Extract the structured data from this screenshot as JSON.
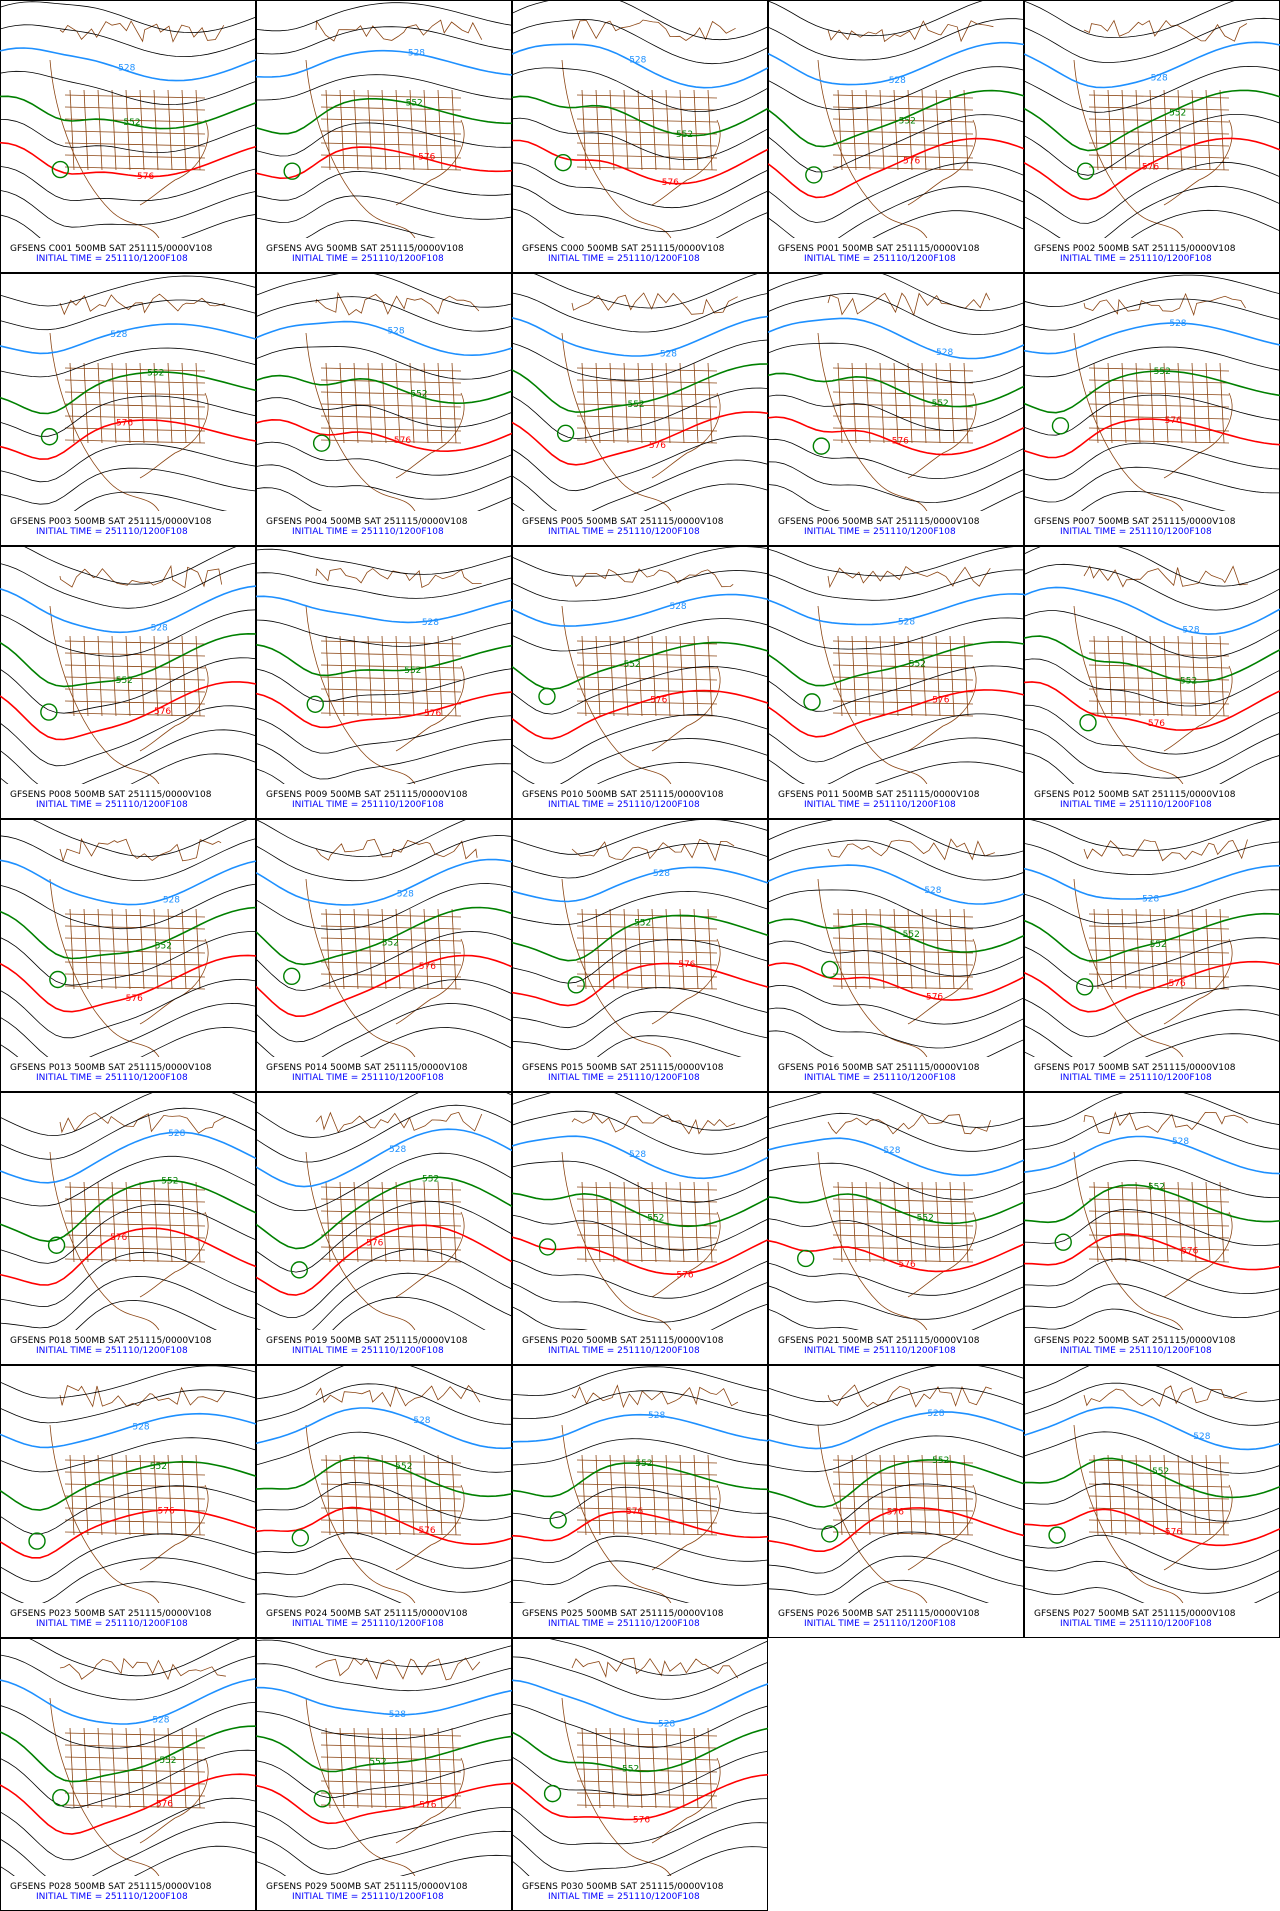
{
  "panels": [
    {
      "title": "GFSENS C001 500MB SAT 251115/0000V108",
      "subtitle": "INITIAL TIME = 251110/1200F108",
      "contour_labels": [
        "528",
        "552",
        "576"
      ]
    },
    {
      "title": "GFSENS AVG 500MB SAT 251115/0000V108",
      "subtitle": "INITIAL TIME = 251110/1200F108",
      "contour_labels": [
        "528",
        "552",
        "576"
      ]
    },
    {
      "title": "GFSENS C000 500MB SAT 251115/0000V108",
      "subtitle": "INITIAL TIME = 251110/1200F108",
      "contour_labels": [
        "528",
        "552",
        "576"
      ]
    },
    {
      "title": "GFSENS P001 500MB SAT 251115/0000V108",
      "subtitle": "INITIAL TIME = 251110/1200F108",
      "contour_labels": [
        "528",
        "552",
        "576"
      ]
    },
    {
      "title": "GFSENS P002 500MB SAT 251115/0000V108",
      "subtitle": "INITIAL TIME = 251110/1200F108",
      "contour_labels": [
        "528",
        "552",
        "576"
      ]
    },
    {
      "title": "GFSENS P003 500MB SAT 251115/0000V108",
      "subtitle": "INITIAL TIME = 251110/1200F108",
      "contour_labels": [
        "528",
        "552",
        "576"
      ]
    },
    {
      "title": "GFSENS P004 500MB SAT 251115/0000V108",
      "subtitle": "INITIAL TIME = 251110/1200F108",
      "contour_labels": [
        "528",
        "552",
        "576"
      ]
    },
    {
      "title": "GFSENS P005 500MB SAT 251115/0000V108",
      "subtitle": "INITIAL TIME = 251110/1200F108",
      "contour_labels": [
        "528",
        "552",
        "576"
      ]
    },
    {
      "title": "GFSENS P006 500MB SAT 251115/0000V108",
      "subtitle": "INITIAL TIME = 251110/1200F108",
      "contour_labels": [
        "528",
        "552",
        "576"
      ]
    },
    {
      "title": "GFSENS P007 500MB SAT 251115/0000V108",
      "subtitle": "INITIAL TIME = 251110/1200F108",
      "contour_labels": [
        "528",
        "552",
        "576"
      ]
    },
    {
      "title": "GFSENS P008 500MB SAT 251115/0000V108",
      "subtitle": "INITIAL TIME = 251110/1200F108",
      "contour_labels": [
        "528",
        "552",
        "576"
      ]
    },
    {
      "title": "GFSENS P009 500MB SAT 251115/0000V108",
      "subtitle": "INITIAL TIME = 251110/1200F108",
      "contour_labels": [
        "528",
        "552",
        "576"
      ]
    },
    {
      "title": "GFSENS P010 500MB SAT 251115/0000V108",
      "subtitle": "INITIAL TIME = 251110/1200F108",
      "contour_labels": [
        "528",
        "552",
        "576"
      ]
    },
    {
      "title": "GFSENS P011 500MB SAT 251115/0000V108",
      "subtitle": "INITIAL TIME = 251110/1200F108",
      "contour_labels": [
        "528",
        "552",
        "576"
      ]
    },
    {
      "title": "GFSENS P012 500MB SAT 251115/0000V108",
      "subtitle": "INITIAL TIME = 251110/1200F108",
      "contour_labels": [
        "528",
        "552",
        "576"
      ]
    },
    {
      "title": "GFSENS P013 500MB SAT 251115/0000V108",
      "subtitle": "INITIAL TIME = 251110/1200F108",
      "contour_labels": [
        "528",
        "552",
        "576"
      ]
    },
    {
      "title": "GFSENS P014 500MB SAT 251115/0000V108",
      "subtitle": "INITIAL TIME = 251110/1200F108",
      "contour_labels": [
        "528",
        "552",
        "576"
      ]
    },
    {
      "title": "GFSENS P015 500MB SAT 251115/0000V108",
      "subtitle": "INITIAL TIME = 251110/1200F108",
      "contour_labels": [
        "528",
        "552",
        "576"
      ]
    },
    {
      "title": "GFSENS P016 500MB SAT 251115/0000V108",
      "subtitle": "INITIAL TIME = 251110/1200F108",
      "contour_labels": [
        "528",
        "552",
        "576"
      ]
    },
    {
      "title": "GFSENS P017 500MB SAT 251115/0000V108",
      "subtitle": "INITIAL TIME = 251110/1200F108",
      "contour_labels": [
        "528",
        "552",
        "576"
      ]
    },
    {
      "title": "GFSENS P018 500MB SAT 251115/0000V108",
      "subtitle": "INITIAL TIME = 251110/1200F108",
      "contour_labels": [
        "528",
        "552",
        "576"
      ]
    },
    {
      "title": "GFSENS P019 500MB SAT 251115/0000V108",
      "subtitle": "INITIAL TIME = 251110/1200F108",
      "contour_labels": [
        "528",
        "552",
        "576"
      ]
    },
    {
      "title": "GFSENS P020 500MB SAT 251115/0000V108",
      "subtitle": "INITIAL TIME = 251110/1200F108",
      "contour_labels": [
        "528",
        "552",
        "576"
      ]
    },
    {
      "title": "GFSENS P021 500MB SAT 251115/0000V108",
      "subtitle": "INITIAL TIME = 251110/1200F108",
      "contour_labels": [
        "528",
        "552",
        "576"
      ]
    },
    {
      "title": "GFSENS P022 500MB SAT 251115/0000V108",
      "subtitle": "INITIAL TIME = 251110/1200F108",
      "contour_labels": [
        "528",
        "552",
        "576"
      ]
    },
    {
      "title": "GFSENS P023 500MB SAT 251115/0000V108",
      "subtitle": "INITIAL TIME = 251110/1200F108",
      "contour_labels": [
        "528",
        "552",
        "576"
      ]
    },
    {
      "title": "GFSENS P024 500MB SAT 251115/0000V108",
      "subtitle": "INITIAL TIME = 251110/1200F108",
      "contour_labels": [
        "528",
        "552",
        "576"
      ]
    },
    {
      "title": "GFSENS P025 500MB SAT 251115/0000V108",
      "subtitle": "INITIAL TIME = 251110/1200F108",
      "contour_labels": [
        "528",
        "552",
        "576"
      ]
    },
    {
      "title": "GFSENS P026 500MB SAT 251115/0000V108",
      "subtitle": "INITIAL TIME = 251110/1200F108",
      "contour_labels": [
        "528",
        "552",
        "576"
      ]
    },
    {
      "title": "GFSENS P027 500MB SAT 251115/0000V108",
      "subtitle": "INITIAL TIME = 251110/1200F108",
      "contour_labels": [
        "528",
        "552",
        "576"
      ]
    },
    {
      "title": "GFSENS P028 500MB SAT 251115/0000V108",
      "subtitle": "INITIAL TIME = 251110/1200F108",
      "contour_labels": [
        "528",
        "552",
        "576"
      ]
    },
    {
      "title": "GFSENS P029 500MB SAT 251115/0000V108",
      "subtitle": "INITIAL TIME = 251110/1200F108",
      "contour_labels": [
        "528",
        "552",
        "576"
      ]
    },
    {
      "title": "GFSENS P030 500MB SAT 251115/0000V108",
      "subtitle": "INITIAL TIME = 251110/1200F108",
      "contour_labels": [
        "528",
        "552",
        "576"
      ]
    }
  ]
}
